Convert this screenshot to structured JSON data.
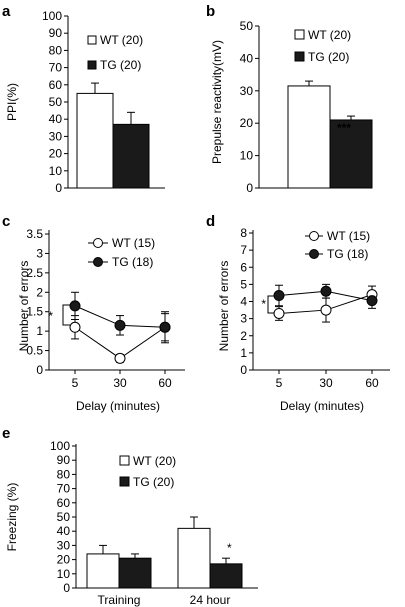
{
  "chart_data": [
    {
      "panel": "a",
      "type": "bar",
      "categories": [
        "WT (20)",
        "TG (20)"
      ],
      "values": [
        55,
        37
      ],
      "errors": [
        6,
        7
      ],
      "ylabel": "PPI(%)",
      "ylim": [
        0,
        100
      ],
      "yticks": [
        0,
        10,
        20,
        30,
        40,
        50,
        60,
        70,
        80,
        90,
        100
      ],
      "legend": [
        "WT (20)",
        "TG (20)"
      ],
      "colors": [
        "#ffffff",
        "#1a1a1a"
      ]
    },
    {
      "panel": "b",
      "type": "bar",
      "categories": [
        "WT (20)",
        "TG (20)"
      ],
      "values": [
        31.5,
        21
      ],
      "errors": [
        1.5,
        1.2
      ],
      "ylabel": "Prepulse reactivity(mV)",
      "ylim": [
        0,
        50
      ],
      "yticks": [
        0,
        10,
        20,
        30,
        40,
        50
      ],
      "legend": [
        "WT (20)",
        "TG (20)"
      ],
      "annotation": "***",
      "colors": [
        "#ffffff",
        "#1a1a1a"
      ]
    },
    {
      "panel": "c",
      "type": "line",
      "x": [
        "5",
        "30",
        "60"
      ],
      "series": [
        {
          "name": "WT (15)",
          "values": [
            1.1,
            0.3,
            1.1
          ],
          "errors": [
            0.3,
            0.1,
            0.35
          ]
        },
        {
          "name": "TG (18)",
          "values": [
            1.65,
            1.15,
            1.1
          ],
          "errors": [
            0.35,
            0.25,
            0.4
          ]
        }
      ],
      "xlabel": "Delay (minutes)",
      "ylabel": "Number of errors",
      "ylim": [
        0,
        3.5
      ],
      "yticks": [
        "0",
        "0.5",
        "1",
        "1.5",
        "2",
        "2.5",
        "3",
        "3.5"
      ],
      "annotation": "*"
    },
    {
      "panel": "d",
      "type": "line",
      "x": [
        "5",
        "30",
        "60"
      ],
      "series": [
        {
          "name": "WT (15)",
          "values": [
            3.3,
            3.5,
            4.4
          ],
          "errors": [
            0.4,
            0.7,
            0.5
          ]
        },
        {
          "name": "TG (18)",
          "values": [
            4.35,
            4.6,
            4.05
          ],
          "errors": [
            0.6,
            0.4,
            0.45
          ]
        }
      ],
      "xlabel": "Delay (minutes)",
      "ylabel": "Number of errors",
      "ylim": [
        0,
        8
      ],
      "yticks": [
        "0",
        "1",
        "2",
        "3",
        "4",
        "5",
        "6",
        "7",
        "8"
      ],
      "annotation": "*"
    },
    {
      "panel": "e",
      "type": "bar",
      "categories": [
        "Training",
        "24 hour"
      ],
      "series": [
        {
          "name": "WT (20)",
          "values": [
            24,
            42
          ],
          "errors": [
            6,
            8
          ]
        },
        {
          "name": "TG (20)",
          "values": [
            21,
            17
          ],
          "errors": [
            3,
            4
          ]
        }
      ],
      "ylabel": "Freezing (%)",
      "ylim": [
        0,
        100
      ],
      "yticks": [
        0,
        10,
        20,
        30,
        40,
        50,
        60,
        70,
        80,
        90,
        100
      ],
      "annotation": "*"
    }
  ]
}
